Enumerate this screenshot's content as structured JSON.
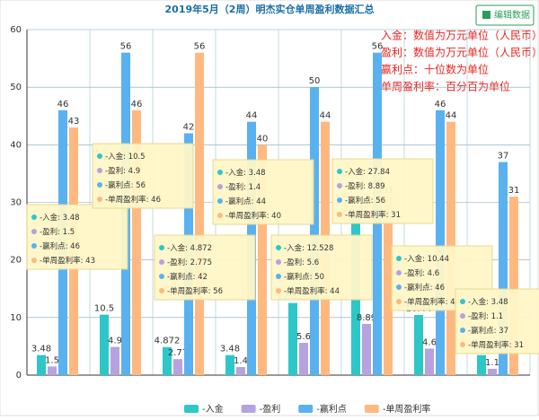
{
  "chart_data": {
    "type": "bar",
    "title": "2019年5月（2周）明杰实仓单周盈利数据汇总",
    "button": "编辑数据",
    "notes": [
      "入金：数值为万元单位（人民币）",
      "盈利：数值为万元单位（人民币）",
      "赢利点：十位数为单位",
      "单周盈利率：百分百为单位"
    ],
    "categories": [
      null,
      null,
      null,
      null,
      null,
      null,
      null,
      null
    ],
    "series": [
      {
        "name": "-入金",
        "color": "#2ec7c9",
        "values": [
          3.48,
          10.5,
          4.872,
          3.48,
          12.528,
          27.84,
          10.44,
          3.48
        ]
      },
      {
        "name": "-盈利",
        "color": "#b6a2de",
        "values": [
          1.5,
          4.9,
          2.775,
          1.4,
          5.6,
          8.89,
          4.6,
          1.1
        ],
        "value_labels": [
          "1.5",
          "4.9",
          "2.77",
          "1.4",
          "5.6",
          "8.89",
          "4.6",
          "1.1"
        ]
      },
      {
        "name": "-赢利点",
        "color": "#5ab1ef",
        "values": [
          46,
          56,
          42,
          44,
          50,
          56,
          46,
          37
        ]
      },
      {
        "name": "-单周盈利率",
        "color": "#ffb980",
        "values": [
          43,
          46,
          56,
          40,
          44,
          31,
          44,
          31
        ]
      }
    ],
    "ylim": [
      0,
      60
    ],
    "yticks": [
      0,
      10,
      20,
      30,
      40,
      50,
      60
    ],
    "grid": true,
    "legend": "bottom"
  }
}
